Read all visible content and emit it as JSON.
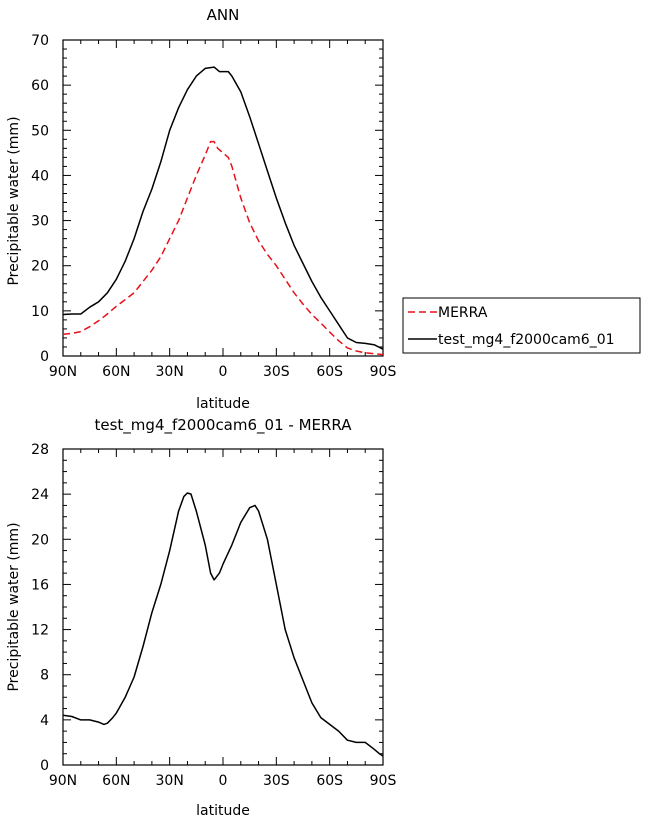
{
  "chart_data": [
    {
      "type": "line",
      "title": "ANN",
      "xlabel": "latitude",
      "ylabel": "Precipitable water (mm)",
      "x_ticks": [
        -90,
        -60,
        -30,
        0,
        30,
        60,
        90
      ],
      "x_tick_labels": [
        "90N",
        "60N",
        "30N",
        "0",
        "30S",
        "60S",
        "90S"
      ],
      "xlim": [
        -90,
        90
      ],
      "y_ticks": [
        0,
        10,
        20,
        30,
        40,
        50,
        60,
        70
      ],
      "y_tick_labels": [
        "0",
        "10",
        "20",
        "30",
        "40",
        "50",
        "60",
        "70"
      ],
      "ylim": [
        0,
        70
      ],
      "legend_position": "right",
      "series": [
        {
          "name": "MERRA",
          "color": "#e8101a",
          "dash": "dashed",
          "x": [
            -90,
            -85,
            -80,
            -75,
            -70,
            -65,
            -60,
            -55,
            -50,
            -45,
            -40,
            -35,
            -30,
            -25,
            -20,
            -15,
            -10,
            -7,
            -5,
            -3,
            0,
            3,
            5,
            10,
            15,
            20,
            25,
            30,
            35,
            40,
            45,
            50,
            55,
            60,
            65,
            70,
            75,
            80,
            85,
            90
          ],
          "y": [
            4.8,
            5.0,
            5.4,
            6.5,
            7.8,
            9.3,
            11.0,
            12.5,
            14.0,
            16.5,
            19.0,
            22.0,
            26.0,
            30.0,
            35.0,
            40.0,
            44.5,
            47.5,
            47.5,
            46.0,
            45.0,
            44.0,
            42.0,
            35.0,
            29.5,
            25.5,
            22.5,
            20.0,
            17.0,
            14.0,
            11.5,
            9.2,
            7.3,
            5.3,
            3.4,
            1.8,
            1.1,
            0.7,
            0.5,
            0.3
          ]
        },
        {
          "name": "test_mg4_f2000cam6_01",
          "color": "#000000",
          "dash": "solid",
          "x": [
            -90,
            -85,
            -80,
            -75,
            -70,
            -65,
            -60,
            -55,
            -50,
            -45,
            -40,
            -35,
            -30,
            -25,
            -20,
            -15,
            -10,
            -5,
            -2,
            0,
            3,
            5,
            10,
            15,
            20,
            25,
            30,
            35,
            40,
            45,
            50,
            55,
            60,
            65,
            70,
            75,
            80,
            85,
            90
          ],
          "y": [
            9.2,
            9.3,
            9.3,
            10.8,
            12.0,
            14.0,
            17.0,
            21.0,
            26.0,
            32.0,
            37.0,
            43.0,
            50.0,
            55.0,
            59.0,
            62.0,
            63.7,
            64.0,
            63.0,
            63.0,
            63.0,
            62.0,
            58.5,
            53.0,
            47.0,
            41.0,
            35.0,
            29.5,
            24.5,
            20.5,
            16.5,
            13.0,
            10.0,
            7.0,
            4.0,
            3.0,
            2.8,
            2.5,
            1.5
          ]
        }
      ]
    },
    {
      "type": "line",
      "title": "test_mg4_f2000cam6_01 - MERRA",
      "xlabel": "latitude",
      "ylabel": "Precipitable water (mm)",
      "x_ticks": [
        -90,
        -60,
        -30,
        0,
        30,
        60,
        90
      ],
      "x_tick_labels": [
        "90N",
        "60N",
        "30N",
        "0",
        "30S",
        "60S",
        "90S"
      ],
      "xlim": [
        -90,
        90
      ],
      "y_ticks": [
        0,
        4,
        8,
        12,
        16,
        20,
        24,
        28
      ],
      "y_tick_labels": [
        "0",
        "4",
        "8",
        "12",
        "16",
        "20",
        "24",
        "28"
      ],
      "ylim": [
        0,
        28
      ],
      "series": [
        {
          "color": "#000000",
          "dash": "solid",
          "x": [
            -90,
            -85,
            -80,
            -75,
            -70,
            -67,
            -65,
            -62,
            -60,
            -55,
            -50,
            -45,
            -40,
            -35,
            -30,
            -25,
            -22,
            -20,
            -18,
            -15,
            -10,
            -7,
            -5,
            -2,
            0,
            5,
            10,
            15,
            18,
            20,
            25,
            30,
            35,
            40,
            45,
            50,
            55,
            60,
            65,
            70,
            75,
            80,
            85,
            88,
            90
          ],
          "y": [
            4.4,
            4.3,
            4.0,
            4.0,
            3.8,
            3.6,
            3.7,
            4.2,
            4.6,
            6.0,
            7.8,
            10.5,
            13.5,
            16.0,
            19.0,
            22.5,
            23.8,
            24.1,
            24.0,
            22.5,
            19.5,
            17.0,
            16.4,
            17.0,
            17.8,
            19.5,
            21.5,
            22.8,
            23.0,
            22.5,
            20.0,
            16.0,
            12.0,
            9.5,
            7.5,
            5.5,
            4.2,
            3.6,
            3.0,
            2.2,
            2.0,
            2.0,
            1.4,
            1.0,
            0.8
          ]
        }
      ]
    }
  ]
}
